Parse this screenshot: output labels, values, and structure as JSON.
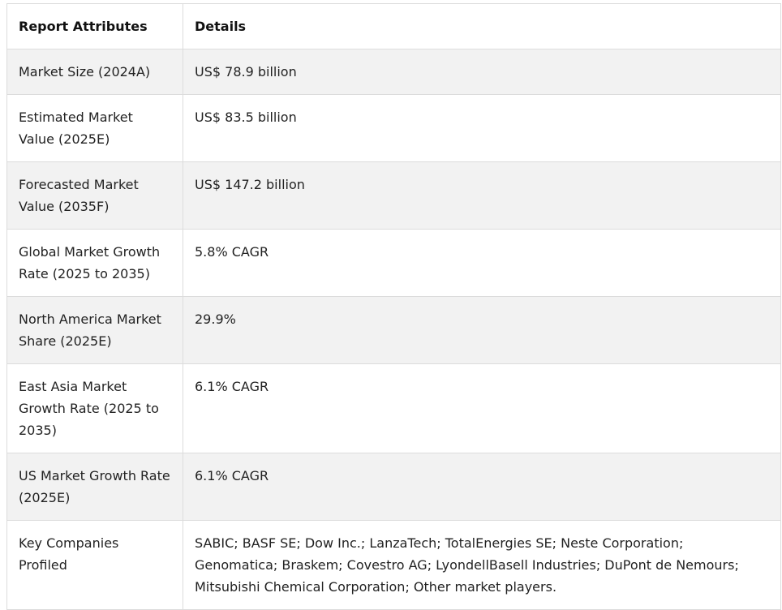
{
  "table": {
    "headers": [
      "Report Attributes",
      "Details"
    ],
    "rows": [
      {
        "attribute": "Market Size (2024A)",
        "details": "US$ 78.9 billion"
      },
      {
        "attribute": "Estimated Market Value (2025E)",
        "details": "US$ 83.5 billion"
      },
      {
        "attribute": "Forecasted Market Value (2035F)",
        "details": "US$ 147.2 billion"
      },
      {
        "attribute": "Global Market Growth Rate (2025 to 2035)",
        "details": "5.8% CAGR"
      },
      {
        "attribute": "North America Market Share (2025E)",
        "details": "29.9%"
      },
      {
        "attribute": "East Asia Market Growth Rate (2025 to 2035)",
        "details": "6.1% CAGR"
      },
      {
        "attribute": "US Market Growth Rate (2025E)",
        "details": "6.1% CAGR"
      },
      {
        "attribute": "Key Companies Profiled",
        "details": "SABIC; BASF SE; Dow Inc.; LanzaTech; TotalEnergies SE; Neste Corporation; Genomatica; Braskem; Covestro AG; LyondellBasell Industries; DuPont de Nemours; Mitsubishi Chemical Corporation; Other market players."
      }
    ]
  }
}
